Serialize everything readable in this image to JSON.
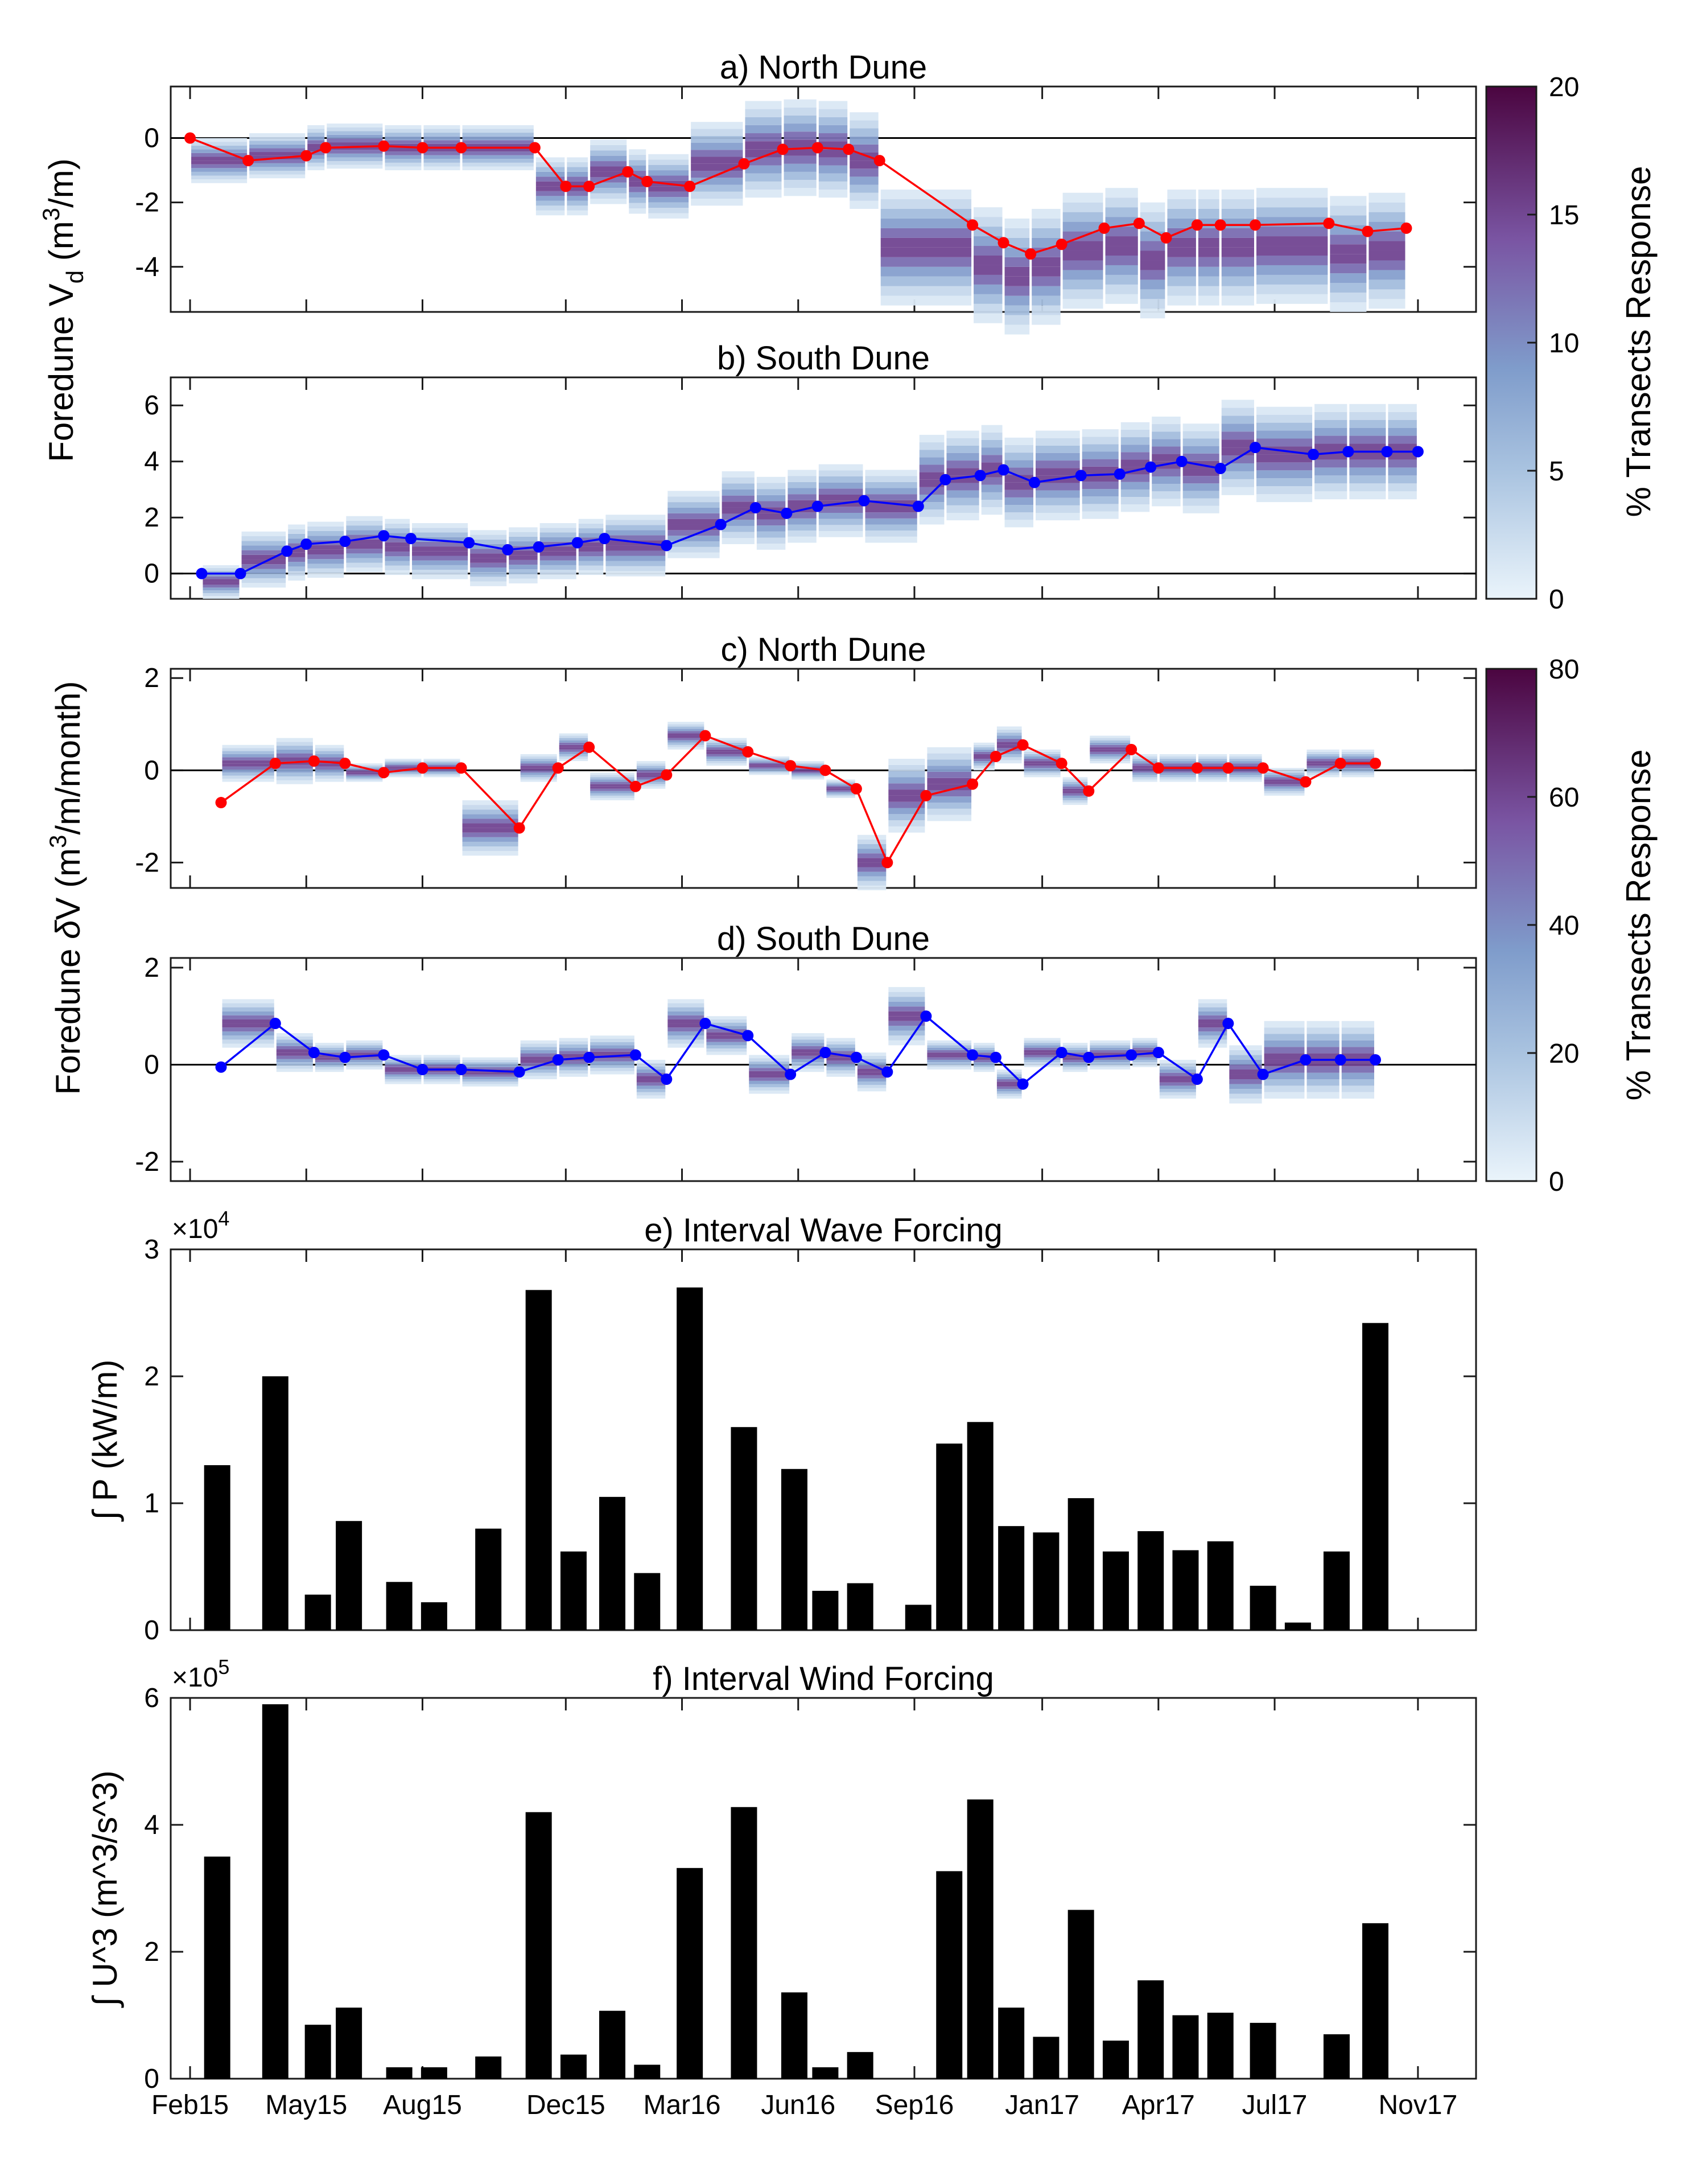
{
  "colors": {
    "north": "#ff0000",
    "south": "#0000ff",
    "bar": "#000000",
    "cmap_low": "#e8f3fa",
    "cmap_mid": "#86a2cc",
    "cmap_high": "#4b0540"
  },
  "x_axis": {
    "ticks": [
      "Feb15",
      "May15",
      "Aug15",
      "Dec15",
      "Mar16",
      "Jun16",
      "Sep16",
      "Jan17",
      "Apr17",
      "Jul17",
      "Nov17"
    ],
    "range_months": [
      -0.5,
      33.2
    ]
  },
  "shared_labels": {
    "volume_ylabel": "Foredune V_d (m^3/m)",
    "volume_ylabel_main": "Foredune V",
    "volume_ylabel_sub": "d",
    "volume_ylabel_unit": " (m",
    "volume_ylabel_sup": "3",
    "volume_ylabel_end": "/m)",
    "rate_ylabel": "Foredune δV (m^3/m/month)",
    "rate_ylabel_main": "Foredune ",
    "rate_ylabel_delta": "δ",
    "rate_ylabel_v": "V (m",
    "rate_ylabel_sup": "3",
    "rate_ylabel_end": "/m/month)",
    "cbar1_label": "% Transects Response",
    "cbar1_ticks": [
      "0",
      "5",
      "10",
      "15",
      "20"
    ],
    "cbar2_label": "% Transects Response",
    "cbar2_ticks": [
      "0",
      "20",
      "40",
      "60",
      "80"
    ]
  },
  "chart_data": [
    {
      "type": "line",
      "title": "a) North Dune",
      "ylim": [
        -5.4,
        1.6
      ],
      "yticks": [
        "-4",
        "-2",
        "0"
      ],
      "ytick_values": [
        -4,
        -2,
        0
      ],
      "x": [
        0,
        1.5,
        3,
        3.5,
        5,
        6,
        7,
        8.9,
        9.7,
        10.3,
        11.3,
        11.8,
        12.9,
        14.3,
        15.3,
        16.2,
        17,
        17.8,
        20.2,
        21,
        21.7,
        22.5,
        23.6,
        24.5,
        25.2,
        26,
        26.6,
        27.5,
        29.4,
        30.4,
        31.4
      ],
      "values": [
        0,
        -0.7,
        -0.55,
        -0.3,
        -0.25,
        -0.3,
        -0.3,
        -0.3,
        -1.5,
        -1.5,
        -1.05,
        -1.35,
        -1.5,
        -0.8,
        -0.35,
        -0.3,
        -0.35,
        -0.7,
        -2.7,
        -3.25,
        -3.6,
        -3.3,
        -2.8,
        -2.65,
        -3.1,
        -2.7,
        -2.7,
        -2.7,
        -2.65,
        -2.9,
        -2.8
      ],
      "spread": [
        0,
        0.7,
        0.7,
        0.7,
        0.7,
        0.7,
        0.7,
        0.7,
        0.9,
        0.9,
        1.0,
        1.0,
        1.0,
        1.3,
        1.5,
        1.5,
        1.5,
        1.5,
        1.8,
        1.8,
        1.8,
        1.8,
        1.8,
        1.8,
        1.8,
        1.8,
        1.8,
        1.8,
        1.8,
        1.8,
        1.8
      ],
      "band_offset": [
        0,
        0,
        0,
        0,
        0,
        0,
        0,
        0,
        0,
        0,
        0,
        0,
        0,
        0,
        0,
        0,
        0,
        0,
        -0.7,
        -0.7,
        -0.7,
        -0.7,
        -0.7,
        -0.7,
        -0.7,
        -0.7,
        -0.7,
        -0.7,
        -0.7,
        -0.7,
        -0.7
      ],
      "series_color": "north",
      "zero_line": true
    },
    {
      "type": "line",
      "title": "b) South Dune",
      "ylim": [
        -0.9,
        7.0
      ],
      "yticks": [
        "0",
        "2",
        "4",
        "6"
      ],
      "ytick_values": [
        0,
        2,
        4,
        6
      ],
      "x": [
        0.3,
        1.3,
        2.5,
        3,
        4,
        5,
        5.7,
        7.2,
        8.2,
        9,
        10,
        10.7,
        12.3,
        13.7,
        14.6,
        15.4,
        16.2,
        17.4,
        18.8,
        19.5,
        20.4,
        21,
        21.8,
        23,
        24,
        24.8,
        25.6,
        26.6,
        27.5,
        29,
        29.9,
        30.9,
        31.7
      ],
      "values": [
        0,
        0,
        0.8,
        1.05,
        1.15,
        1.35,
        1.25,
        1.1,
        0.85,
        0.95,
        1.1,
        1.25,
        1.0,
        1.75,
        2.35,
        2.15,
        2.4,
        2.6,
        2.4,
        3.35,
        3.5,
        3.7,
        3.25,
        3.5,
        3.55,
        3.8,
        4.0,
        3.75,
        4.5,
        4.25,
        4.35,
        4.35,
        4.35
      ],
      "spread": [
        0,
        0.6,
        1.0,
        1.0,
        1.0,
        1.0,
        1.0,
        1.0,
        1.0,
        1.0,
        1.0,
        1.0,
        1.1,
        1.2,
        1.3,
        1.3,
        1.3,
        1.3,
        1.3,
        1.6,
        1.6,
        1.6,
        1.6,
        1.6,
        1.6,
        1.6,
        1.6,
        1.6,
        1.7,
        1.7,
        1.7,
        1.7,
        1.7
      ],
      "band_offset": [
        0,
        -0.3,
        -0.3,
        -0.3,
        -0.3,
        -0.3,
        -0.3,
        -0.3,
        -0.3,
        -0.3,
        -0.3,
        -0.3,
        0,
        0,
        0,
        0,
        0,
        0,
        0,
        0,
        0,
        0,
        0,
        0,
        0,
        0,
        0,
        0,
        0,
        0,
        0,
        0,
        0
      ],
      "series_color": "south",
      "zero_line": true
    },
    {
      "type": "line",
      "title": "c) North Dune",
      "ylim": [
        -2.55,
        2.2
      ],
      "yticks": [
        "-2",
        "0",
        "2"
      ],
      "ytick_values": [
        -2,
        0,
        2
      ],
      "x": [
        0.8,
        2.2,
        3.2,
        4,
        5,
        6,
        7,
        8.5,
        9.5,
        10.3,
        11.5,
        12.3,
        13.3,
        14.4,
        15.5,
        16.4,
        17.2,
        18,
        19,
        20.2,
        20.8,
        21.5,
        22.5,
        23.2,
        24.3,
        25,
        26,
        26.8,
        27.7,
        28.8,
        29.7,
        30.6
      ],
      "values": [
        -0.7,
        0.15,
        0.2,
        0.15,
        -0.05,
        0.05,
        0.05,
        -1.25,
        0.05,
        0.5,
        -0.35,
        -0.1,
        0.75,
        0.4,
        0.1,
        0,
        -0.4,
        -2.0,
        -0.55,
        -0.3,
        0.3,
        0.55,
        0.15,
        -0.45,
        0.45,
        0.05,
        0.05,
        0.05,
        0.05,
        -0.25,
        0.15,
        0.15
      ],
      "spread": [
        0.3,
        0.4,
        0.5,
        0.4,
        0.2,
        0.2,
        0.2,
        0.6,
        0.3,
        0.3,
        0.3,
        0.3,
        0.3,
        0.3,
        0.2,
        0.2,
        0.2,
        0.6,
        0.8,
        0.8,
        0.3,
        0.4,
        0.3,
        0.3,
        0.3,
        0.3,
        0.3,
        0.3,
        0.3,
        0.3,
        0.3,
        0.3
      ],
      "band_offset": [
        0,
        0,
        0,
        0,
        0,
        0,
        0,
        0,
        0,
        0,
        0,
        0,
        0,
        0,
        0,
        0,
        0,
        0,
        0,
        0,
        0,
        0,
        0,
        0,
        0,
        0,
        0,
        0,
        0,
        0,
        0,
        0
      ],
      "series_color": "north",
      "zero_line": true
    },
    {
      "type": "line",
      "title": "d) South Dune",
      "ylim": [
        -2.4,
        2.2
      ],
      "yticks": [
        "-2",
        "0",
        "2"
      ],
      "ytick_values": [
        -2,
        0,
        2
      ],
      "x": [
        0.8,
        2.2,
        3.2,
        4,
        5,
        6,
        7,
        8.5,
        9.5,
        10.3,
        11.5,
        12.3,
        13.3,
        14.4,
        15.5,
        16.4,
        17.2,
        18,
        19,
        20.2,
        20.8,
        21.5,
        22.5,
        23.2,
        24.3,
        25,
        26,
        26.8,
        27.7,
        28.8,
        29.7,
        30.6
      ],
      "values": [
        -0.05,
        0.85,
        0.25,
        0.15,
        0.2,
        -0.1,
        -0.1,
        -0.15,
        0.1,
        0.15,
        0.2,
        -0.3,
        0.85,
        0.6,
        -0.2,
        0.25,
        0.15,
        -0.15,
        1.0,
        0.2,
        0.15,
        -0.4,
        0.25,
        0.15,
        0.2,
        0.25,
        -0.3,
        0.85,
        -0.2,
        0.1,
        0.1,
        0.1
      ],
      "spread": [
        0.4,
        0.5,
        0.4,
        0.3,
        0.3,
        0.3,
        0.3,
        0.3,
        0.4,
        0.4,
        0.4,
        0.4,
        0.5,
        0.4,
        0.4,
        0.4,
        0.4,
        0.4,
        0.6,
        0.3,
        0.3,
        0.3,
        0.3,
        0.3,
        0.3,
        0.3,
        0.4,
        0.5,
        0.6,
        0.8,
        0.8,
        0.8
      ],
      "band_offset": [
        0,
        0,
        0,
        0,
        0,
        0,
        0,
        0,
        0,
        0,
        0,
        0,
        0,
        0,
        0,
        0,
        0,
        0,
        0,
        0,
        0,
        0,
        0,
        0,
        0,
        0,
        0,
        0,
        0,
        0,
        0,
        0
      ],
      "series_color": "south",
      "zero_line": true
    },
    {
      "type": "bar",
      "title": "e) Interval Wave Forcing",
      "ylabel": "∫ P (kW/m)",
      "multiplier": "×10",
      "multiplier_exp": "4",
      "ylim": [
        0,
        3
      ],
      "yticks": [
        "0",
        "1",
        "2",
        "3"
      ],
      "ytick_values": [
        0,
        1,
        2,
        3
      ],
      "x": [
        0.7,
        2.2,
        3.3,
        4.1,
        5.4,
        6.3,
        7.7,
        9.0,
        9.9,
        10.9,
        11.8,
        12.9,
        14.3,
        15.6,
        16.4,
        17.3,
        18.8,
        19.6,
        20.4,
        21.2,
        22.1,
        23.0,
        23.9,
        24.8,
        25.7,
        26.6,
        27.7,
        28.6,
        29.6,
        30.6
      ],
      "values": [
        1.3,
        2.0,
        0.28,
        0.86,
        0.38,
        0.22,
        0.8,
        2.68,
        0.62,
        1.05,
        0.45,
        2.7,
        1.6,
        1.27,
        0.31,
        0.37,
        0.2,
        1.47,
        1.64,
        0.82,
        0.77,
        1.04,
        0.62,
        0.78,
        0.63,
        0.7,
        0.35,
        0.06,
        0.62,
        2.42
      ]
    },
    {
      "type": "bar",
      "title": "f) Interval Wind Forcing",
      "ylabel": "∫ U^3 (m^3/s^3)",
      "multiplier": "×10",
      "multiplier_exp": "5",
      "ylim": [
        0,
        6
      ],
      "yticks": [
        "0",
        "2",
        "4",
        "6"
      ],
      "ytick_values": [
        0,
        2,
        4,
        6
      ],
      "x": [
        0.7,
        2.2,
        3.3,
        4.1,
        5.4,
        6.3,
        7.7,
        9.0,
        9.9,
        10.9,
        11.8,
        12.9,
        14.3,
        15.6,
        16.4,
        17.3,
        18.8,
        19.6,
        20.4,
        21.2,
        22.1,
        23.0,
        23.9,
        24.8,
        25.7,
        26.6,
        27.7,
        28.6,
        29.6,
        30.6
      ],
      "values": [
        3.5,
        5.9,
        0.85,
        1.12,
        0.18,
        0.18,
        0.35,
        4.2,
        0.38,
        1.07,
        0.22,
        3.32,
        4.28,
        1.36,
        0.18,
        0.42,
        0,
        3.27,
        4.4,
        1.12,
        0.66,
        2.66,
        0.6,
        1.55,
        1.0,
        1.04,
        0.88,
        0,
        0.7,
        2.45
      ]
    }
  ]
}
